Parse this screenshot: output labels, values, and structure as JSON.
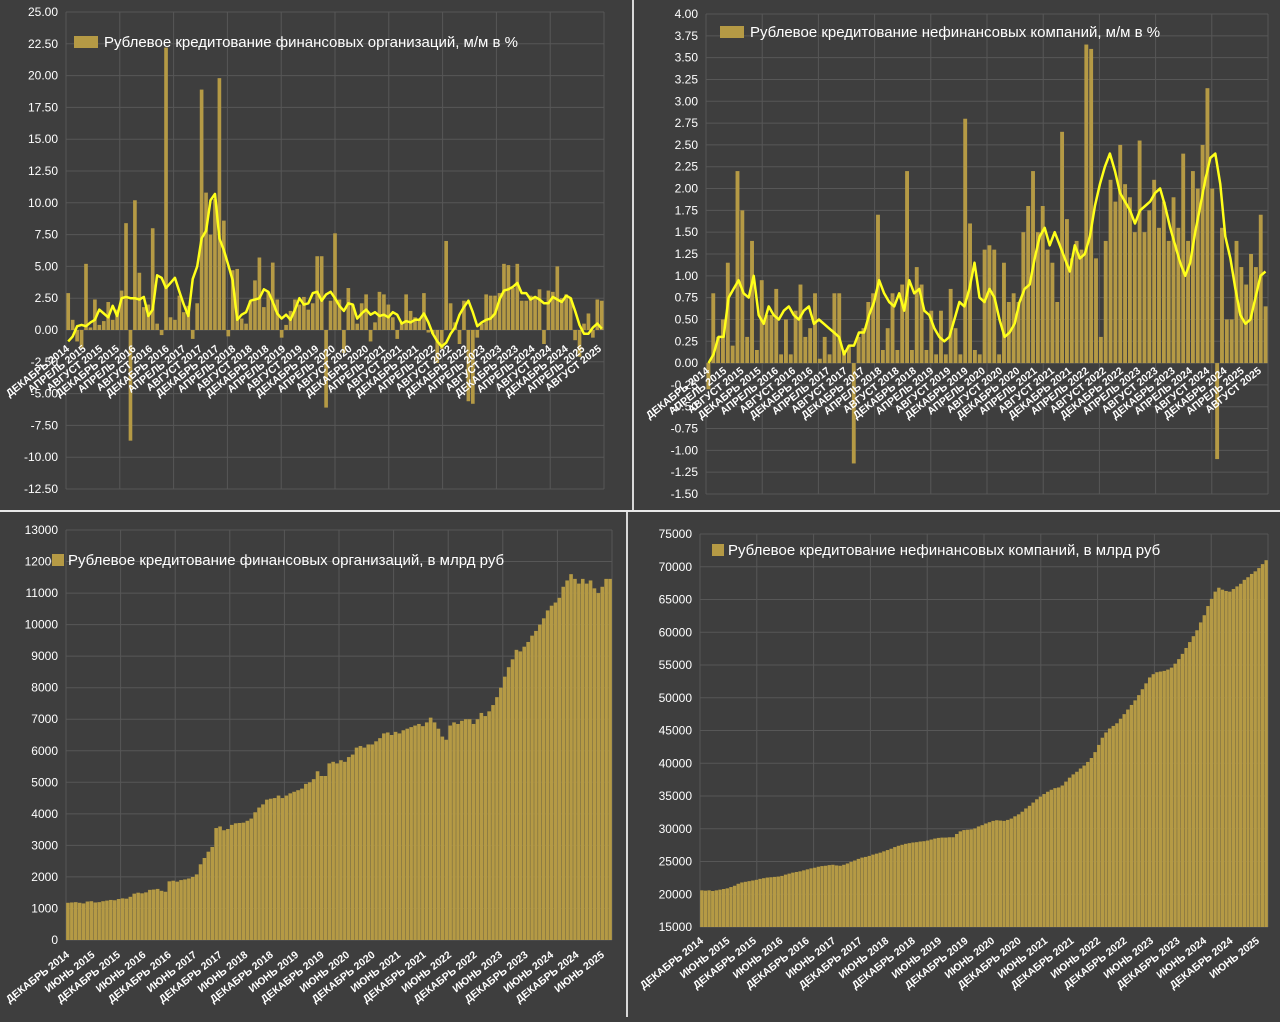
{
  "colors": {
    "background": "#3e3e3e",
    "grid": "#575757",
    "bar": "#b59a45",
    "line": "#ffff1a",
    "text": "#ffffff",
    "separator": "#d8d8d8"
  },
  "chart_data": [
    {
      "type": "bar",
      "title": "Рублевое кредитование финансовых организаций, м/м в %",
      "yticks": [
        "25.00",
        "22.50",
        "20.00",
        "17.50",
        "15.00",
        "12.50",
        "10.00",
        "7.50",
        "5.00",
        "2.50",
        "0.00",
        "-2.50",
        "-5.00",
        "-7.50",
        "-10.00",
        "-12.50"
      ],
      "ylim": [
        -12.5,
        25
      ],
      "xtick_labels": [
        "ДЕКАБРЬ 2014",
        "АПРЕЛЬ 2015",
        "АВГУСТ 2015",
        "ДЕКАБРЬ 2015",
        "АПРЕЛЬ 2016",
        "АВГУСТ 2016",
        "ДЕКАБРЬ 2016",
        "АПРЕЛЬ 2017",
        "АВГУСТ 2017",
        "ДЕКАБРЬ 2017",
        "АПРЕЛЬ 2018",
        "АВГУСТ 2018",
        "ДЕКАБРЬ 2018",
        "АПРЕЛЬ 2019",
        "АВГУСТ 2019",
        "ДЕКАБРЬ 2019",
        "АПРЕЛЬ 2020",
        "АВГУСТ 2020",
        "ДЕКАБРЬ 2020",
        "АПРЕЛЬ 2021",
        "АВГУСТ 2021",
        "ДЕКАБРЬ 2021",
        "АПРЕЛЬ 2022",
        "АВГУСТ 2022",
        "ДЕКАБРЬ 2022",
        "АПРЕЛЬ 2023",
        "АВГУСТ 2023",
        "ДЕКАБРЬ 2023",
        "АПРЕЛЬ 2024",
        "АВГУСТ 2024",
        "ДЕКАБРЬ 2024",
        "АПРЕЛЬ 2025",
        "АВГУСТ 2025"
      ],
      "values": [
        2.9,
        0.8,
        -0.9,
        -1.4,
        5.2,
        0.2,
        2.4,
        0.4,
        0.7,
        2.2,
        0.8,
        1.6,
        3.1,
        8.4,
        -8.7,
        10.2,
        4.5,
        1.8,
        2.0,
        8.0,
        0.5,
        -0.4,
        22.2,
        1.0,
        0.8,
        2.7,
        1.4,
        1.9,
        -0.7,
        2.1,
        18.9,
        10.8,
        7.5,
        10.3,
        19.8,
        8.6,
        -0.5,
        4.7,
        4.8,
        0.9,
        0.5,
        2.3,
        3.9,
        5.7,
        1.8,
        3.0,
        5.3,
        2.4,
        -0.6,
        0.4,
        1.5,
        2.4,
        2.0,
        2.6,
        1.6,
        2.1,
        5.8,
        5.8,
        -6.1,
        2.3,
        7.6,
        2.4,
        -1.8,
        3.3,
        2.0,
        0.5,
        2.1,
        2.8,
        -0.9,
        0.6,
        3.0,
        2.8,
        2.0,
        1.0,
        -0.7,
        0.6,
        2.8,
        1.5,
        1.0,
        0.9,
        2.9,
        -0.2,
        -0.3,
        -2.6,
        -1.5,
        7.0,
        2.1,
        0.6,
        -1.1,
        2.3,
        -5.6,
        -5.8,
        -0.6,
        0.5,
        2.8,
        2.7,
        2.7,
        2.9,
        5.2,
        5.1,
        3.3,
        5.2,
        2.3,
        2.3,
        2.7,
        2.5,
        3.2,
        -1.1,
        3.1,
        3.0,
        5.0,
        2.5,
        2.8,
        2.5,
        -0.8,
        -2.1,
        0.5,
        1.3,
        -0.6,
        2.4,
        2.3
      ],
      "trend": [
        -0.9,
        -0.5,
        0.3,
        0.4,
        0.3,
        0.6,
        0.8,
        1.6,
        1.3,
        1.0,
        1.9,
        1.1,
        2.5,
        2.6,
        2.5,
        2.5,
        2.4,
        2.6,
        1.1,
        1.6,
        4.3,
        4.1,
        3.3,
        3.7,
        4.1,
        3.0,
        2.0,
        1.1,
        4.0,
        5.0,
        7.2,
        7.8,
        10.2,
        10.7,
        7.2,
        6.3,
        5.1,
        3.9,
        0.8,
        1.2,
        1.4,
        2.3,
        2.4,
        2.5,
        3.2,
        3.0,
        2.2,
        1.3,
        0.9,
        1.2,
        0.8,
        1.6,
        2.5,
        2.0,
        2.1,
        2.9,
        3.0,
        2.3,
        2.8,
        3.0,
        2.5,
        1.9,
        1.5,
        2.1,
        2.0,
        0.9,
        1.3,
        1.6,
        1.2,
        1.4,
        1.1,
        1.2,
        1.0,
        1.4,
        1.2,
        0.5,
        0.7,
        0.6,
        0.8,
        0.8,
        1.3,
        0.6,
        -0.3,
        -0.9,
        -1.3,
        -1.0,
        -0.3,
        0.2,
        1.2,
        1.8,
        2.3,
        1.4,
        0.3,
        0.6,
        0.8,
        0.9,
        1.3,
        2.4,
        3.1,
        3.2,
        3.4,
        3.7,
        2.9,
        2.9,
        2.4,
        2.6,
        2.4,
        2.1,
        2.1,
        2.6,
        2.4,
        2.2,
        2.7,
        2.5,
        1.5,
        0.4,
        -0.3,
        -0.3,
        0.2,
        0.5,
        0.1
      ]
    },
    {
      "type": "bar",
      "title": "Рублевое кредитование нефинансовых компаний, м/м в %",
      "yticks": [
        "4.00",
        "3.75",
        "3.50",
        "3.25",
        "3.00",
        "2.75",
        "2.50",
        "2.25",
        "2.00",
        "1.75",
        "1.50",
        "1.25",
        "1.00",
        "0.75",
        "0.50",
        "0.25",
        "0.00",
        "-0.25",
        "-0.50",
        "-0.75",
        "-1.00",
        "-1.25",
        "-1.50"
      ],
      "ylim": [
        -1.5,
        4
      ],
      "xtick_labels": [
        "ДЕКАБРЬ 2014",
        "АПРЕЛЬ 2015",
        "АВГУСТ 2015",
        "ДЕКАБРЬ 2015",
        "АПРЕЛЬ 2016",
        "АВГУСТ 2016",
        "ДЕКАБРЬ 2016",
        "АПРЕЛЬ 2017",
        "АВГУСТ 2017",
        "ДЕКАБРЬ 2017",
        "АПРЕЛЬ 2018",
        "АВГУСТ 2018",
        "ДЕКАБРЬ 2018",
        "АПРЕЛЬ 2019",
        "АВГУСТ 2019",
        "ДЕКАБРЬ 2019",
        "АПРЕЛЬ 2020",
        "АВГУСТ 2020",
        "ДЕКАБРЬ 2020",
        "АПРЕЛЬ 2021",
        "АВГУСТ 2021",
        "ДЕКАБРЬ 2021",
        "АПРЕЛЬ 2022",
        "АВГУСТ 2022",
        "ДЕКАБРЬ 2022",
        "АПРЕЛЬ 2023",
        "АВГУСТ 2023",
        "ДЕКАБРЬ 2023",
        "АПРЕЛЬ 2024",
        "АВГУСТ 2024",
        "ДЕКАБРЬ 2024",
        "АПРЕЛЬ 2025",
        "АВГУСТ 2025"
      ],
      "values": [
        -0.3,
        0.8,
        0.3,
        0.5,
        1.15,
        0.2,
        2.2,
        1.75,
        0.3,
        1.4,
        0.15,
        0.95,
        0.55,
        0.55,
        0.85,
        0.1,
        0.5,
        0.1,
        0.6,
        0.9,
        0.3,
        0.4,
        0.8,
        0.05,
        0.3,
        0.1,
        0.8,
        0.8,
        0.15,
        0.2,
        -1.15,
        0.3,
        0.4,
        0.7,
        0.8,
        1.7,
        0.15,
        0.4,
        0.8,
        0.15,
        0.9,
        2.2,
        0.15,
        1.1,
        0.9,
        0.15,
        0.6,
        0.1,
        0.6,
        0.1,
        0.85,
        0.4,
        0.1,
        2.8,
        1.6,
        0.15,
        0.1,
        1.3,
        1.35,
        1.3,
        0.1,
        1.15,
        0.7,
        0.8,
        0.7,
        1.5,
        1.8,
        2.2,
        1.5,
        1.8,
        1.3,
        1.15,
        0.7,
        2.65,
        1.65,
        1.2,
        1.4,
        1.3,
        3.65,
        3.6,
        1.2,
        0.3,
        1.4,
        2.1,
        1.85,
        2.5,
        2.05,
        1.9,
        1.5,
        2.55,
        1.5,
        1.75,
        2.1,
        1.55,
        1.85,
        1.4,
        1.9,
        1.55,
        2.4,
        1.4,
        2.2,
        2.0,
        2.5,
        3.15,
        2.0,
        -1.1,
        1.55,
        0.5,
        0.5,
        1.4,
        1.1,
        0.9,
        1.25,
        1.1,
        1.7,
        0.65
      ],
      "trend": [
        0.0,
        0.1,
        0.3,
        0.3,
        0.75,
        0.85,
        0.95,
        0.8,
        0.75,
        1.0,
        0.55,
        0.45,
        0.65,
        0.55,
        0.5,
        0.6,
        0.65,
        0.55,
        0.5,
        0.6,
        0.65,
        0.45,
        0.5,
        0.45,
        0.4,
        0.35,
        0.3,
        0.1,
        0.2,
        0.2,
        0.35,
        0.35,
        0.55,
        0.7,
        0.95,
        0.8,
        0.7,
        0.65,
        0.8,
        0.6,
        0.95,
        0.8,
        0.85,
        0.6,
        0.55,
        0.4,
        0.3,
        0.25,
        0.3,
        0.5,
        0.7,
        0.65,
        0.85,
        1.15,
        0.75,
        0.7,
        0.85,
        0.75,
        0.5,
        0.3,
        0.35,
        0.45,
        0.7,
        0.85,
        0.9,
        1.2,
        1.45,
        1.55,
        1.35,
        1.5,
        1.35,
        1.2,
        1.05,
        1.35,
        1.2,
        1.25,
        1.45,
        1.8,
        2.05,
        2.25,
        2.4,
        2.2,
        1.95,
        1.85,
        1.75,
        1.6,
        1.75,
        1.8,
        1.85,
        1.95,
        2.0,
        1.8,
        1.55,
        1.35,
        1.15,
        1.0,
        1.15,
        1.5,
        1.8,
        2.1,
        2.35,
        2.4,
        2.05,
        1.45,
        1.2,
        0.85,
        0.55,
        0.45,
        0.5,
        0.75,
        1.0,
        1.05
      ]
    },
    {
      "type": "bar",
      "title": "Рублевое кредитование финансовых организаций, в млрд руб",
      "yticks": [
        "13000",
        "12000",
        "11000",
        "10000",
        "9000",
        "8000",
        "7000",
        "6000",
        "5000",
        "4000",
        "3000",
        "2000",
        "1000",
        "0"
      ],
      "ylim": [
        0,
        13000
      ],
      "xtick_labels": [
        "ДЕКАБРЬ 2014",
        "ИЮНЬ 2015",
        "ДЕКАБРЬ 2015",
        "ИЮНЬ 2016",
        "ДЕКАБРЬ 2016",
        "ИЮНЬ 2017",
        "ДЕКАБРЬ 2017",
        "ИЮНЬ 2018",
        "ДЕКАБРЬ 2018",
        "ИЮНЬ 2019",
        "ДЕКАБРЬ 2019",
        "ИЮНЬ 2020",
        "ДЕКАБРЬ 2020",
        "ИЮНЬ 2021",
        "ДЕКАБРЬ 2021",
        "ИЮНЬ 2022",
        "ДЕКАБРЬ 2022",
        "ИЮНЬ 2023",
        "ДЕКАБРЬ 2023",
        "ИЮНЬ 2024",
        "ДЕКАБРЬ 2024",
        "ИЮНЬ 2025"
      ],
      "values": [
        1180,
        1190,
        1200,
        1180,
        1160,
        1220,
        1230,
        1190,
        1200,
        1230,
        1250,
        1270,
        1260,
        1300,
        1320,
        1310,
        1370,
        1470,
        1500,
        1480,
        1510,
        1590,
        1600,
        1620,
        1560,
        1530,
        1860,
        1880,
        1850,
        1900,
        1920,
        1950,
        2000,
        2080,
        2400,
        2600,
        2800,
        2950,
        3550,
        3600,
        3480,
        3520,
        3650,
        3700,
        3710,
        3720,
        3780,
        3850,
        4050,
        4200,
        4300,
        4450,
        4480,
        4500,
        4580,
        4500,
        4580,
        4650,
        4700,
        4750,
        4800,
        4950,
        5000,
        5100,
        5350,
        5200,
        5200,
        5600,
        5650,
        5600,
        5700,
        5650,
        5800,
        5880,
        6100,
        6150,
        6100,
        6200,
        6200,
        6300,
        6400,
        6550,
        6580,
        6500,
        6600,
        6550,
        6650,
        6700,
        6750,
        6800,
        6850,
        6780,
        6900,
        7050,
        6900,
        6700,
        6450,
        6350,
        6800,
        6900,
        6850,
        6950,
        7000,
        7000,
        6850,
        7000,
        7200,
        7100,
        7250,
        7450,
        7700,
        8000,
        8350,
        8650,
        8900,
        9200,
        9150,
        9300,
        9450,
        9650,
        9800,
        10000,
        10200,
        10450,
        10600,
        10700,
        10850,
        11200,
        11400,
        11600,
        11450,
        11300,
        11450,
        11300,
        11400,
        11150,
        11000,
        11200,
        11450,
        11450
      ]
    },
    {
      "type": "bar",
      "title": "Рублевое кредитование нефинансовых компаний, в млрд руб",
      "yticks": [
        "75000",
        "70000",
        "65000",
        "60000",
        "55000",
        "50000",
        "45000",
        "40000",
        "35000",
        "30000",
        "25000",
        "20000",
        "15000"
      ],
      "ylim": [
        15000,
        75000
      ],
      "xtick_labels": [
        "ДЕКАБРЬ 2014",
        "ИЮНЬ 2015",
        "ДЕКАБРЬ 2015",
        "ИЮНЬ 2016",
        "ДЕКАБРЬ 2016",
        "ИЮНЬ 2017",
        "ДЕКАБРЬ 2017",
        "ИЮНЬ 2018",
        "ДЕКАБРЬ 2018",
        "ИЮНЬ 2019",
        "ДЕКАБРЬ 2019",
        "ИЮНЬ 2020",
        "ДЕКАБРЬ 2020",
        "ИЮНЬ 2021",
        "ДЕКАБРЬ 2021",
        "ИЮНЬ 2022",
        "ДЕКАБРЬ 2022",
        "ИЮНЬ 2023",
        "ДЕКАБРЬ 2023",
        "ИЮНЬ 2024",
        "ДЕКАБРЬ 2024",
        "ИЮНЬ 2025"
      ],
      "values": [
        20600,
        20550,
        20600,
        20500,
        20600,
        20700,
        20800,
        20900,
        21100,
        21300,
        21600,
        21800,
        21900,
        22000,
        22100,
        22200,
        22350,
        22450,
        22550,
        22600,
        22650,
        22700,
        22800,
        23000,
        23150,
        23300,
        23400,
        23500,
        23650,
        23800,
        23950,
        24050,
        24200,
        24300,
        24350,
        24450,
        24500,
        24400,
        24350,
        24500,
        24700,
        24950,
        25150,
        25400,
        25600,
        25700,
        25850,
        26050,
        26200,
        26350,
        26550,
        26750,
        26950,
        27200,
        27400,
        27550,
        27700,
        27800,
        27900,
        27950,
        28050,
        28100,
        28200,
        28350,
        28500,
        28600,
        28650,
        28650,
        28700,
        28700,
        29200,
        29600,
        29800,
        29850,
        29900,
        30050,
        30350,
        30550,
        30800,
        31000,
        31200,
        31300,
        31250,
        31200,
        31350,
        31550,
        31900,
        32200,
        32600,
        33100,
        33500,
        34000,
        34500,
        34900,
        35300,
        35650,
        35950,
        36200,
        36300,
        36600,
        37200,
        37800,
        38300,
        38700,
        39200,
        39650,
        40200,
        40800,
        41700,
        42800,
        43900,
        44700,
        45300,
        45700,
        46100,
        46800,
        47500,
        48200,
        48900,
        49600,
        50400,
        51300,
        52200,
        53100,
        53600,
        53900,
        54000,
        54100,
        54300,
        54600,
        55200,
        55900,
        56700,
        57600,
        58500,
        59400,
        60300,
        61500,
        62600,
        64000,
        65100,
        66200,
        66800,
        66500,
        66300,
        66200,
        66600,
        67000,
        67400,
        68000,
        68400,
        68900,
        69300,
        69800,
        70400,
        71000
      ]
    }
  ]
}
